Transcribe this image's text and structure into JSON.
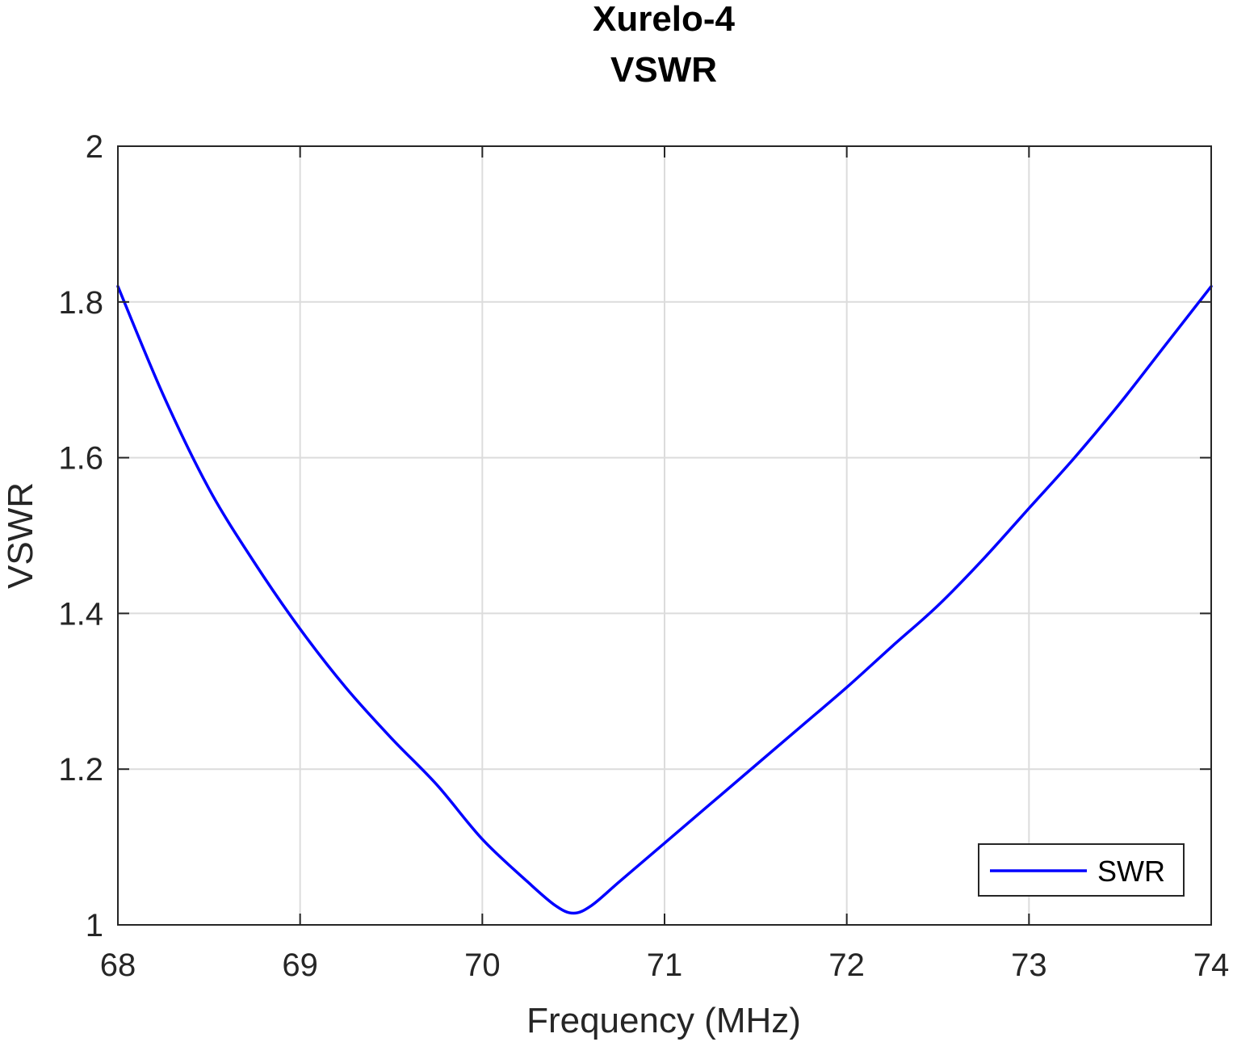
{
  "chart_data": {
    "type": "line",
    "title": [
      "Xurelo-4",
      "VSWR"
    ],
    "xlabel": "Frequency (MHz)",
    "ylabel": "VSWR",
    "xlim": [
      68,
      74
    ],
    "ylim": [
      1,
      2
    ],
    "xticks": [
      68,
      69,
      70,
      71,
      72,
      73,
      74
    ],
    "yticks": [
      1,
      1.2,
      1.4,
      1.6,
      1.8,
      2
    ],
    "xtick_labels": [
      "68",
      "69",
      "70",
      "71",
      "72",
      "73",
      "74"
    ],
    "ytick_labels": [
      "1",
      "1.2",
      "1.4",
      "1.6",
      "1.8",
      "2"
    ],
    "grid": true,
    "legend_position": "bottom-right",
    "series": [
      {
        "name": "SWR",
        "color": "#0000ff",
        "x": [
          68.0,
          68.25,
          68.5,
          68.75,
          69.0,
          69.25,
          69.5,
          69.75,
          70.0,
          70.25,
          70.4,
          70.5,
          70.6,
          70.75,
          71.0,
          71.25,
          71.5,
          71.75,
          72.0,
          72.25,
          72.5,
          72.75,
          73.0,
          73.25,
          73.5,
          73.75,
          74.0
        ],
        "y": [
          1.82,
          1.68,
          1.56,
          1.465,
          1.38,
          1.305,
          1.24,
          1.18,
          1.11,
          1.055,
          1.025,
          1.015,
          1.025,
          1.055,
          1.105,
          1.155,
          1.205,
          1.255,
          1.305,
          1.358,
          1.41,
          1.47,
          1.535,
          1.6,
          1.67,
          1.745,
          1.82
        ]
      }
    ]
  }
}
